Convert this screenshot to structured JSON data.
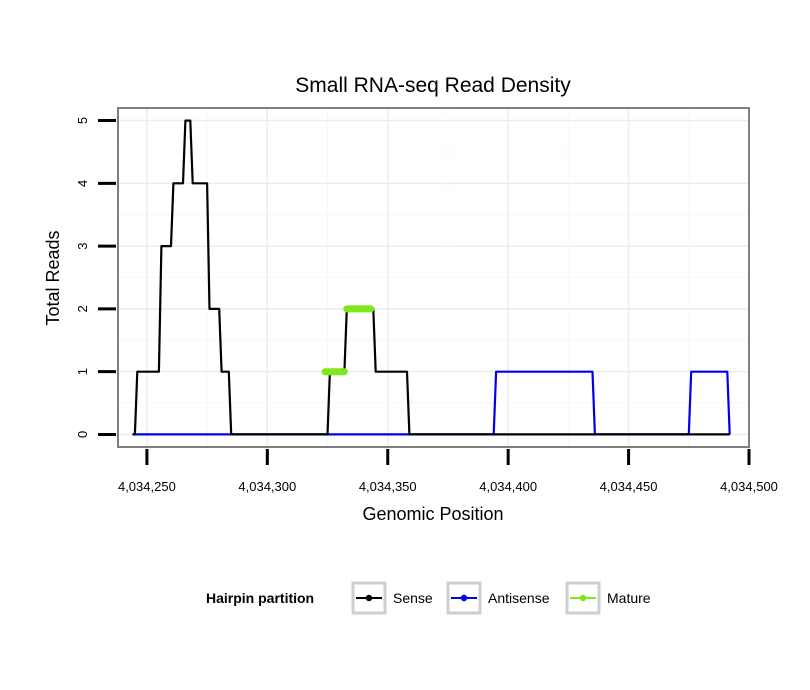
{
  "chart_data": {
    "type": "line",
    "title": "Small RNA-seq Read Density",
    "xlabel": "Genomic Position",
    "ylabel": "Total Reads",
    "xlim": [
      4034238,
      4034500
    ],
    "ylim": [
      -0.2,
      5.2
    ],
    "x_ticks": [
      4034250,
      4034300,
      4034350,
      4034400,
      4034450,
      4034500
    ],
    "x_tick_labels": [
      "4,034,250",
      "4,034,300",
      "4,034,350",
      "4,034,400",
      "4,034,450",
      "4,034,500"
    ],
    "y_ticks": [
      0,
      1,
      2,
      3,
      4,
      5
    ],
    "y_tick_labels": [
      "0",
      "1",
      "2",
      "3",
      "4",
      "5"
    ],
    "grid": true,
    "legend": {
      "title": "Hairpin partition",
      "position": "bottom",
      "entries": [
        {
          "name": "Sense",
          "color": "#000000"
        },
        {
          "name": "Antisense",
          "color": "#0000ee"
        },
        {
          "name": "Mature",
          "color": "#7fe81a"
        }
      ]
    },
    "series": [
      {
        "name": "Sense",
        "color": "#000000",
        "x": [
          4034244,
          4034245,
          4034246,
          4034254,
          4034255,
          4034256,
          4034259,
          4034260,
          4034261,
          4034264,
          4034265,
          4034266,
          4034267,
          4034268,
          4034269,
          4034270,
          4034271,
          4034274,
          4034275,
          4034276,
          4034279,
          4034280,
          4034281,
          4034283,
          4034284,
          4034285,
          4034286,
          4034287,
          4034324,
          4034325,
          4034326,
          4034331,
          4034332,
          4034333,
          4034343,
          4034344,
          4034345,
          4034357,
          4034358,
          4034359,
          4034492
        ],
        "y": [
          0,
          0,
          1,
          1,
          1,
          3,
          3,
          3,
          4,
          4,
          4,
          5,
          5,
          5,
          4,
          4,
          4,
          4,
          4,
          2,
          2,
          2,
          1,
          1,
          1,
          0,
          0,
          0,
          0,
          0,
          1,
          1,
          1,
          2,
          2,
          2,
          1,
          1,
          1,
          0,
          0
        ]
      },
      {
        "name": "Antisense",
        "color": "#0000ee",
        "x": [
          4034244,
          4034393,
          4034394,
          4034395,
          4034434,
          4034435,
          4034436,
          4034474,
          4034475,
          4034476,
          4034491,
          4034492
        ],
        "y": [
          0,
          0,
          0,
          1,
          1,
          1,
          0,
          0,
          0,
          1,
          1,
          0
        ]
      },
      {
        "name": "Mature",
        "color": "#7fe81a",
        "segments": [
          {
            "x": [
              4034324,
              4034332
            ],
            "y": [
              1,
              1
            ]
          },
          {
            "x": [
              4034333,
              4034343
            ],
            "y": [
              2,
              2
            ]
          }
        ]
      }
    ]
  }
}
